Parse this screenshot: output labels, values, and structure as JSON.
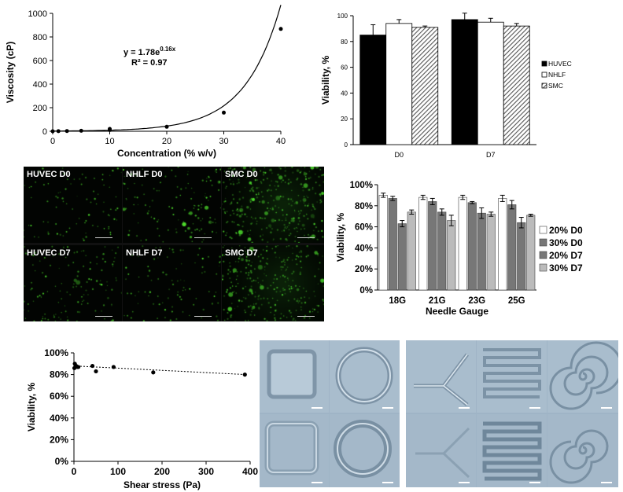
{
  "colors": {
    "hatch": "#555555",
    "black": "#000000",
    "white": "#ffffff",
    "gray_dark": "#777777",
    "gray_light": "#bbbbbb",
    "green": "#3cff3c"
  },
  "chart_data": [
    {
      "type": "scatter",
      "xlabel": "Concentration (% w/v)",
      "ylabel": "Viscosity (cP)",
      "xlim": [
        0,
        40
      ],
      "ylim": [
        0,
        1000
      ],
      "xticks": [
        "0",
        "10",
        "20",
        "30",
        "40"
      ],
      "yticks": [
        "0",
        "200",
        "400",
        "600",
        "800",
        "1000"
      ],
      "x": [
        0,
        1,
        2.5,
        5,
        10,
        10,
        20,
        30,
        40
      ],
      "y": [
        0,
        1,
        2,
        4,
        10,
        20,
        38,
        158,
        868
      ],
      "fit": {
        "type": "exponential",
        "a": 1.78,
        "b": 0.16
      },
      "equation_prefix": "y = 1.78e",
      "equation_exp": "0.16x",
      "r2_label": "R² = 0.97"
    },
    {
      "type": "bar",
      "ylabel": "Viability, %",
      "categories": [
        "D0",
        "D7"
      ],
      "ylim": [
        0,
        100
      ],
      "yticks": [
        "0",
        "20",
        "40",
        "60",
        "80",
        "100"
      ],
      "legend_position": "right",
      "series": [
        {
          "name": "HUVEC",
          "values": [
            85,
            97
          ],
          "errors": [
            8,
            5
          ],
          "fill": "black"
        },
        {
          "name": "NHLF",
          "values": [
            94,
            95
          ],
          "errors": [
            3,
            3
          ],
          "fill": "white"
        },
        {
          "name": "SMC",
          "values": [
            91,
            92
          ],
          "errors": [
            1,
            2
          ],
          "fill": "hatch"
        }
      ]
    },
    {
      "type": "bar",
      "xlabel": "Needle Gauge",
      "ylabel": "Viability, %",
      "categories": [
        "18G",
        "21G",
        "23G",
        "25G"
      ],
      "ylim": [
        0,
        100
      ],
      "yticks": [
        "0%",
        "20%",
        "40%",
        "60%",
        "80%",
        "100%"
      ],
      "legend_position": "right",
      "series": [
        {
          "name": "20% D0",
          "values": [
            90,
            88,
            88,
            87
          ],
          "errors": [
            2,
            2,
            2,
            3
          ],
          "fill": "white"
        },
        {
          "name": "30% D0",
          "values": [
            87,
            84,
            83,
            81
          ],
          "errors": [
            2,
            3,
            1,
            4
          ],
          "fill": "gray_dark"
        },
        {
          "name": "20% D7",
          "values": [
            63,
            74,
            73,
            64
          ],
          "errors": [
            3,
            3,
            5,
            5
          ],
          "fill": "gray_dark"
        },
        {
          "name": "30% D7",
          "values": [
            74,
            66,
            72,
            71
          ],
          "errors": [
            2,
            5,
            2,
            1
          ],
          "fill": "gray_light"
        }
      ]
    },
    {
      "type": "scatter",
      "xlabel": "Shear stress (Pa)",
      "ylabel": "Viability, %",
      "xlim": [
        0,
        400
      ],
      "ylim": [
        0,
        100
      ],
      "xticks": [
        "0",
        "100",
        "200",
        "300",
        "400"
      ],
      "yticks": [
        "0%",
        "20%",
        "40%",
        "60%",
        "80%",
        "100%"
      ],
      "x": [
        1,
        2,
        5,
        8,
        10,
        42,
        50,
        90,
        180,
        388
      ],
      "y": [
        86,
        90,
        88,
        87,
        87,
        88,
        83,
        87,
        82,
        80
      ],
      "trendline": {
        "x": [
          0,
          390
        ],
        "y": [
          88,
          80
        ]
      }
    }
  ],
  "fluorescence": {
    "labels": [
      "HUVEC D0",
      "NHLF D0",
      "SMC D0",
      "HUVEC D7",
      "NHLF D7",
      "SMC D7"
    ],
    "densities": [
      0.25,
      0.35,
      0.9,
      0.35,
      0.25,
      0.75
    ]
  },
  "micrographs": {
    "left_shapes": [
      "square",
      "ring",
      "square",
      "ring"
    ],
    "right_shapes": [
      "y-junction",
      "serpentine",
      "spiral",
      "y-junction",
      "serpentine",
      "spiral"
    ]
  }
}
